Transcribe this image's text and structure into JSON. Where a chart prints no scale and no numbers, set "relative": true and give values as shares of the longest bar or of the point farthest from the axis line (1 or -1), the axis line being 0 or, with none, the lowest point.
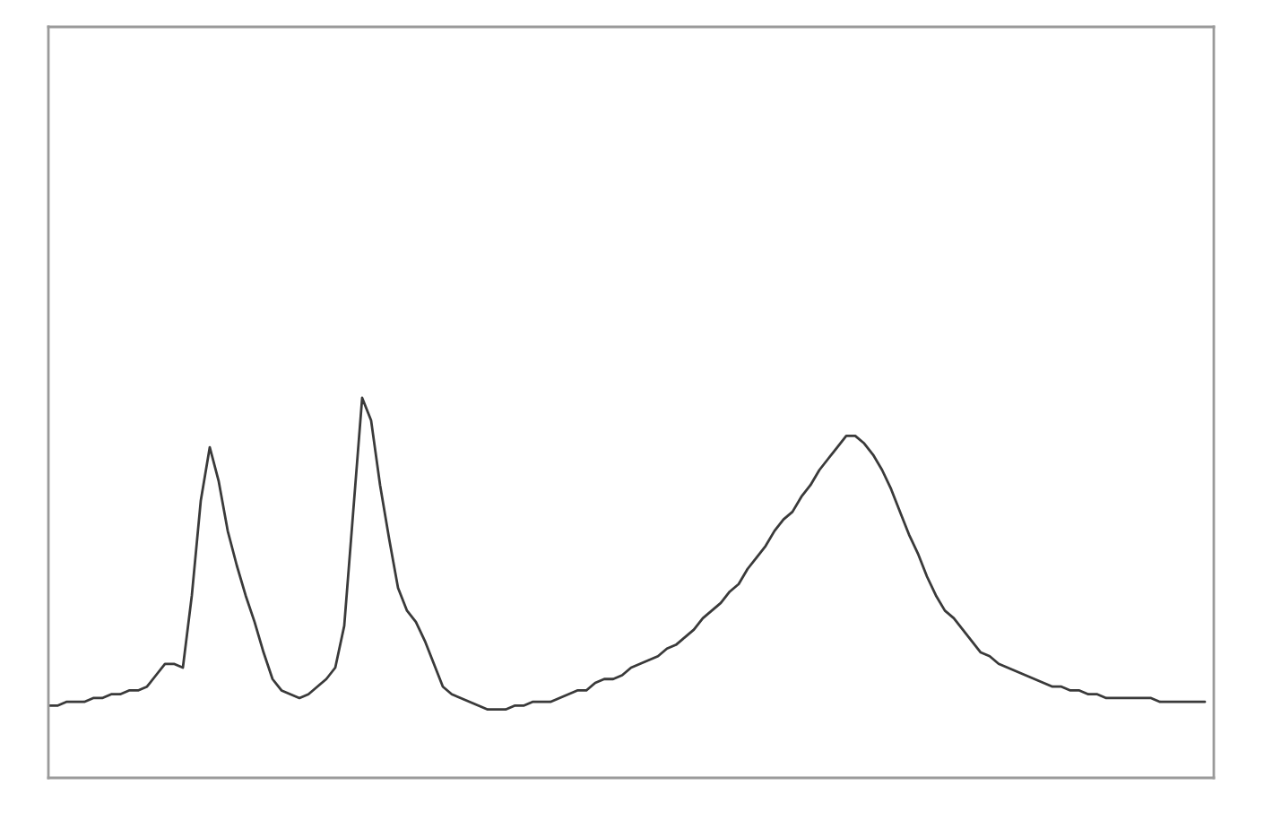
{
  "chart_data": {
    "type": "line",
    "relative": true,
    "categories": [
      null,
      null,
      null,
      null,
      null,
      null,
      null,
      null,
      null,
      null,
      null,
      null,
      null,
      null,
      null,
      null,
      null,
      null,
      null,
      null,
      null,
      null,
      null,
      null,
      null,
      null,
      null,
      null,
      null,
      null,
      null,
      null,
      null,
      null,
      null,
      null,
      null,
      null,
      null,
      null,
      null,
      null,
      null,
      null,
      null,
      null,
      null,
      null,
      null,
      null,
      null,
      null,
      null,
      null,
      null,
      null,
      null,
      null,
      null,
      null,
      null,
      null,
      null,
      null,
      null,
      null,
      null,
      null,
      null,
      null,
      null,
      null,
      null,
      null,
      null,
      null,
      null,
      null,
      null,
      null,
      null,
      null,
      null,
      null,
      null,
      null,
      null,
      null,
      null,
      null,
      null,
      null,
      null,
      null,
      null,
      null,
      null,
      null,
      null,
      null,
      null,
      null,
      null,
      null,
      null,
      null,
      null,
      null,
      null,
      null,
      null,
      null,
      null,
      null,
      null,
      null,
      null,
      null,
      null,
      null,
      null,
      null,
      null,
      null,
      null,
      null,
      null,
      null,
      null,
      null
    ],
    "series": [
      {
        "color": "#3a3a3a",
        "values": [
          0.19,
          0.19,
          0.2,
          0.2,
          0.2,
          0.21,
          0.21,
          0.22,
          0.22,
          0.23,
          0.23,
          0.24,
          0.27,
          0.3,
          0.3,
          0.29,
          0.48,
          0.73,
          0.87,
          0.78,
          0.65,
          0.56,
          0.48,
          0.41,
          0.33,
          0.26,
          0.23,
          0.22,
          0.21,
          0.22,
          0.24,
          0.26,
          0.29,
          0.4,
          0.7,
          1.0,
          0.94,
          0.77,
          0.63,
          0.5,
          0.44,
          0.41,
          0.36,
          0.3,
          0.24,
          0.22,
          0.21,
          0.2,
          0.19,
          0.18,
          0.18,
          0.18,
          0.19,
          0.19,
          0.2,
          0.2,
          0.2,
          0.21,
          0.22,
          0.23,
          0.23,
          0.25,
          0.26,
          0.26,
          0.27,
          0.29,
          0.3,
          0.31,
          0.32,
          0.34,
          0.35,
          0.37,
          0.39,
          0.42,
          0.44,
          0.46,
          0.49,
          0.51,
          0.55,
          0.58,
          0.61,
          0.65,
          0.68,
          0.7,
          0.74,
          0.77,
          0.81,
          0.84,
          0.87,
          0.9,
          0.9,
          0.88,
          0.85,
          0.81,
          0.76,
          0.7,
          0.64,
          0.59,
          0.53,
          0.48,
          0.44,
          0.42,
          0.39,
          0.36,
          0.33,
          0.32,
          0.3,
          0.29,
          0.28,
          0.27,
          0.26,
          0.25,
          0.24,
          0.24,
          0.23,
          0.23,
          0.22,
          0.22,
          0.21,
          0.21,
          0.21,
          0.21,
          0.21,
          0.21,
          0.2,
          0.2,
          0.2,
          0.2,
          0.2,
          0.2
        ]
      }
    ]
  }
}
